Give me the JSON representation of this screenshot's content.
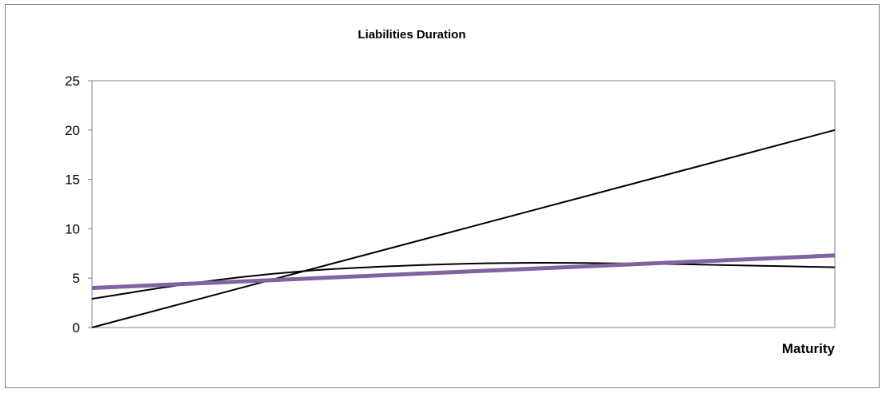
{
  "chart_data": {
    "type": "line",
    "title": "Liabilities Duration",
    "xlabel": "Maturity",
    "ylabel": "",
    "ylim": [
      0,
      25
    ],
    "yticks": [
      "0",
      "5",
      "10",
      "15",
      "20",
      "25"
    ],
    "xlim": [
      0,
      1
    ],
    "grid": false,
    "legend": "none",
    "series": [
      {
        "color": "#000000",
        "x": [
          0,
          1
        ],
        "values": [
          0,
          20
        ]
      },
      {
        "color": "#000000",
        "x": [
          0,
          0.1,
          0.2,
          0.3,
          0.4,
          0.5,
          0.6,
          0.7,
          0.8,
          0.9,
          1.0
        ],
        "values": [
          2.9,
          4.1,
          5.1,
          5.8,
          6.2,
          6.45,
          6.55,
          6.5,
          6.4,
          6.25,
          6.1
        ]
      },
      {
        "color": "#8064a2",
        "x": [
          0,
          1
        ],
        "values": [
          4.0,
          7.3
        ]
      }
    ]
  }
}
